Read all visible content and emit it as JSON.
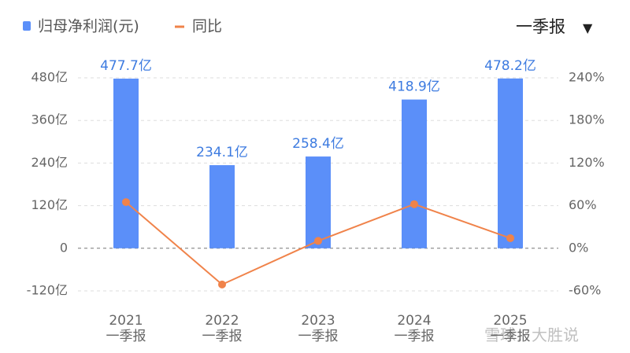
{
  "chart_data": {
    "type": "bar_line",
    "categories": [
      "2021\n一季报",
      "2022\n一季报",
      "2023\n一季报",
      "2024\n一季报",
      "2025\n一季报"
    ],
    "series": [
      {
        "name": "归母净利润(元)",
        "color": "#5b8ff9",
        "type": "bar",
        "values": [
          477.7,
          234.1,
          258.4,
          418.9,
          478.2
        ],
        "value_labels": [
          "477.7亿",
          "234.1亿",
          "258.4亿",
          "418.9亿",
          "478.2亿"
        ]
      },
      {
        "name": "同比",
        "color": "#f0834a",
        "type": "line",
        "axis": "y2",
        "values": [
          65,
          -51,
          10.4,
          62.1,
          14.2
        ]
      }
    ],
    "ylim": [
      -120,
      480
    ],
    "yticks": [
      {
        "value": -120,
        "label": "-120亿"
      },
      0,
      {
        "value": 120,
        "label": "120亿"
      },
      {
        "value": 240,
        "label": "240亿"
      },
      {
        "value": 360,
        "label": "360亿"
      },
      {
        "value": 480,
        "label": "480亿"
      }
    ],
    "y2lim": [
      -60,
      240
    ],
    "y2ticks": [
      {
        "value": -60,
        "label": "-60%"
      },
      {
        "value": 0,
        "label": "0%"
      },
      {
        "value": 60,
        "label": "60%"
      },
      {
        "value": 120,
        "label": "120%"
      },
      {
        "value": 180,
        "label": "180%"
      },
      {
        "value": 240,
        "label": "240%"
      }
    ],
    "grid": true
  },
  "period_selector": "一季报",
  "watermark": "雪球：大胜说"
}
